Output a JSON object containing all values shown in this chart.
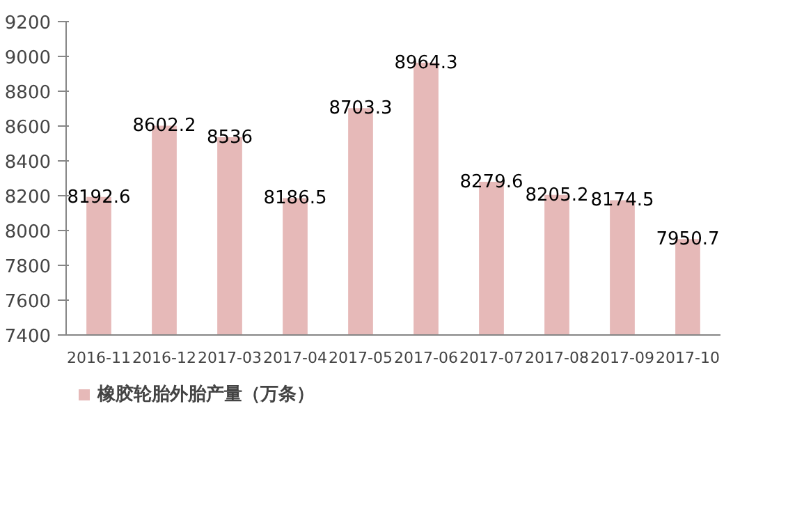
{
  "chart_data": {
    "type": "bar",
    "categories": [
      "2016-11",
      "2016-12",
      "2017-03",
      "2017-04",
      "2017-05",
      "2017-06",
      "2017-07",
      "2017-08",
      "2017-09",
      "2017-10"
    ],
    "series": [
      {
        "name": "橡胶轮胎外胎产量（万条）",
        "color": "#e6b9b8",
        "values": [
          8192.6,
          8602.2,
          8536,
          8186.5,
          8703.3,
          8964.3,
          8279.6,
          8205.2,
          8174.5,
          7950.7
        ]
      }
    ],
    "ylim": [
      7400,
      9200
    ],
    "yticks": [
      7400,
      7600,
      7800,
      8000,
      8200,
      8400,
      8600,
      8800,
      9000,
      9200
    ],
    "data_labels": true,
    "grid": false,
    "legend": "bottom left"
  }
}
